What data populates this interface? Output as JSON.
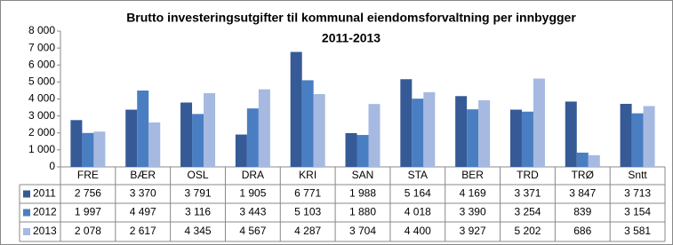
{
  "chart_data": {
    "type": "bar",
    "title": "Brutto investeringsutgifter til kommunal eiendomsforvaltning per innbygger",
    "subtitle": "2011-2013",
    "categories": [
      "FRE",
      "BÆR",
      "OSL",
      "DRA",
      "KRI",
      "SAN",
      "STA",
      "BER",
      "TRD",
      "TRØ",
      "Sntt"
    ],
    "series": [
      {
        "name": "2011",
        "color": "#355a96",
        "values": [
          2756,
          3370,
          3791,
          1905,
          6771,
          1988,
          5164,
          4169,
          3371,
          3847,
          3713
        ],
        "value_labels": [
          "2 756",
          "3 370",
          "3 791",
          "1 905",
          "6 771",
          "1 988",
          "5 164",
          "4 169",
          "3 371",
          "3 847",
          "3 713"
        ]
      },
      {
        "name": "2012",
        "color": "#4a7ec2",
        "values": [
          1997,
          4497,
          3116,
          3443,
          5103,
          1880,
          4018,
          3390,
          3254,
          839,
          3154
        ],
        "value_labels": [
          "1 997",
          "4 497",
          "3 116",
          "3 443",
          "5 103",
          "1 880",
          "4 018",
          "3 390",
          "3 254",
          "839",
          "3 154"
        ]
      },
      {
        "name": "2013",
        "color": "#a6b9e0",
        "values": [
          2078,
          2617,
          4345,
          4567,
          4287,
          3704,
          4400,
          3927,
          5202,
          686,
          3581
        ],
        "value_labels": [
          "2 078",
          "2 617",
          "4 345",
          "4 567",
          "4 287",
          "3 704",
          "4 400",
          "3 927",
          "5 202",
          "686",
          "3 581"
        ]
      }
    ],
    "ylim": [
      0,
      8000
    ],
    "yticks": [
      0,
      {
        "value": 1000,
        "label": "1 000"
      },
      {
        "value": 2000,
        "label": "2 000"
      },
      {
        "value": 3000,
        "label": "3 000"
      },
      {
        "value": 4000,
        "label": "4 000"
      },
      {
        "value": 5000,
        "label": "5 000"
      },
      {
        "value": 6000,
        "label": "6 000"
      },
      {
        "value": 7000,
        "label": "7 000"
      },
      {
        "value": 8000,
        "label": "8 000"
      }
    ],
    "grid": false
  }
}
